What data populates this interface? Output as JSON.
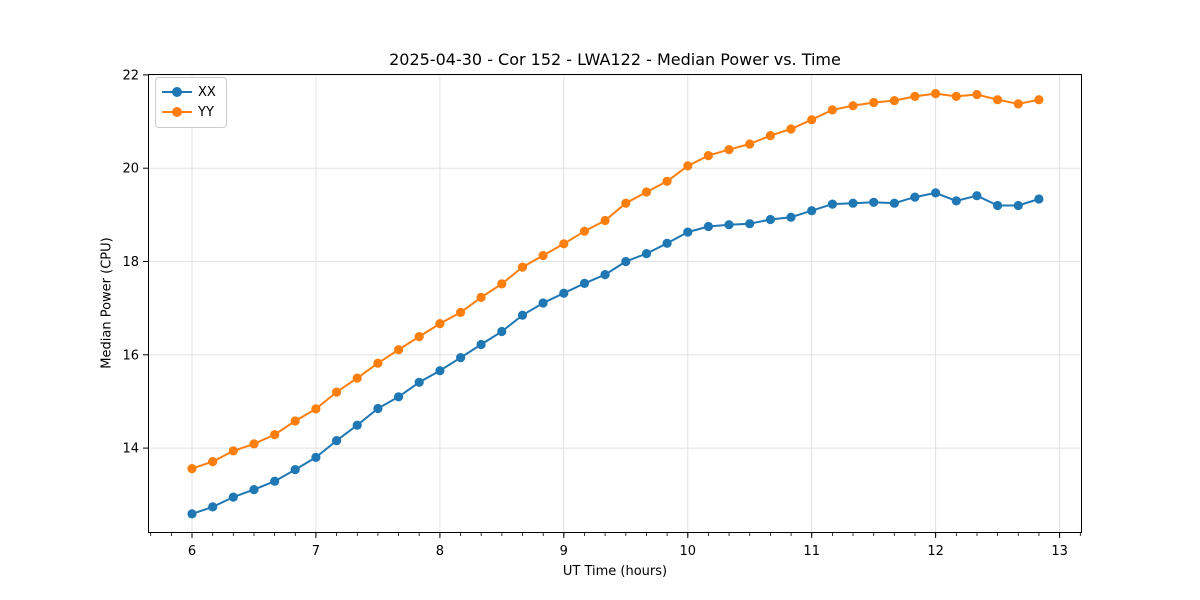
{
  "figure": {
    "title": "2025-04-30 - Cor 152 - LWA122 - Median Power vs. Time",
    "xlabel": "UT Time (hours)",
    "ylabel": "Median Power (CPU)"
  },
  "legend": {
    "position": "upper left",
    "items": [
      {
        "label": "XX",
        "color": "#1f77b4"
      },
      {
        "label": "YY",
        "color": "#ff7f0e"
      }
    ]
  },
  "chart_data": {
    "type": "line",
    "title": "2025-04-30 - Cor 152 - LWA122 - Median Power vs. Time",
    "xlabel": "UT Time (hours)",
    "ylabel": "Median Power (CPU)",
    "xlim": [
      5.645,
      13.181
    ],
    "ylim": [
      12.18,
      22.02
    ],
    "x_ticks": [
      6,
      7,
      8,
      9,
      10,
      11,
      12,
      13
    ],
    "y_ticks": [
      14,
      16,
      18,
      20,
      22
    ],
    "minor_tick_step_x": 0.16667,
    "grid": true,
    "marker": "o",
    "legend_position": "upper left",
    "x": [
      6.0,
      6.167,
      6.333,
      6.5,
      6.667,
      6.833,
      7.0,
      7.167,
      7.333,
      7.5,
      7.667,
      7.833,
      8.0,
      8.167,
      8.333,
      8.5,
      8.667,
      8.833,
      9.0,
      9.167,
      9.333,
      9.5,
      9.667,
      9.833,
      10.0,
      10.167,
      10.333,
      10.5,
      10.667,
      10.833,
      11.0,
      11.167,
      11.333,
      11.5,
      11.667,
      11.833,
      12.0,
      12.167,
      12.333,
      12.5,
      12.667,
      12.833
    ],
    "series": [
      {
        "name": "XX",
        "color": "#1f77b4",
        "values": [
          12.59,
          12.74,
          12.95,
          13.11,
          13.29,
          13.54,
          13.8,
          14.16,
          14.49,
          14.85,
          15.1,
          15.41,
          15.66,
          15.94,
          16.22,
          16.5,
          16.85,
          17.11,
          17.32,
          17.53,
          17.72,
          18.0,
          18.17,
          18.39,
          18.63,
          18.75,
          18.79,
          18.81,
          18.9,
          18.95,
          19.09,
          19.23,
          19.25,
          19.27,
          19.25,
          19.38,
          19.47,
          19.3,
          19.41,
          19.2,
          19.2,
          19.34
        ]
      },
      {
        "name": "YY",
        "color": "#ff7f0e",
        "values": [
          13.56,
          13.71,
          13.94,
          14.09,
          14.29,
          14.58,
          14.84,
          15.2,
          15.5,
          15.82,
          16.11,
          16.39,
          16.67,
          16.91,
          17.23,
          17.52,
          17.88,
          18.13,
          18.38,
          18.65,
          18.88,
          19.25,
          19.49,
          19.72,
          20.05,
          20.27,
          20.4,
          20.52,
          20.7,
          20.84,
          21.04,
          21.25,
          21.34,
          21.41,
          21.45,
          21.54,
          21.6,
          21.54,
          21.58,
          21.47,
          21.38,
          21.47
        ]
      }
    ]
  },
  "style_colors": {
    "grid": "#e2e2e2",
    "spine": "#000000",
    "text": "#000000",
    "legend_border": "#cccccc",
    "background": "#ffffff"
  }
}
